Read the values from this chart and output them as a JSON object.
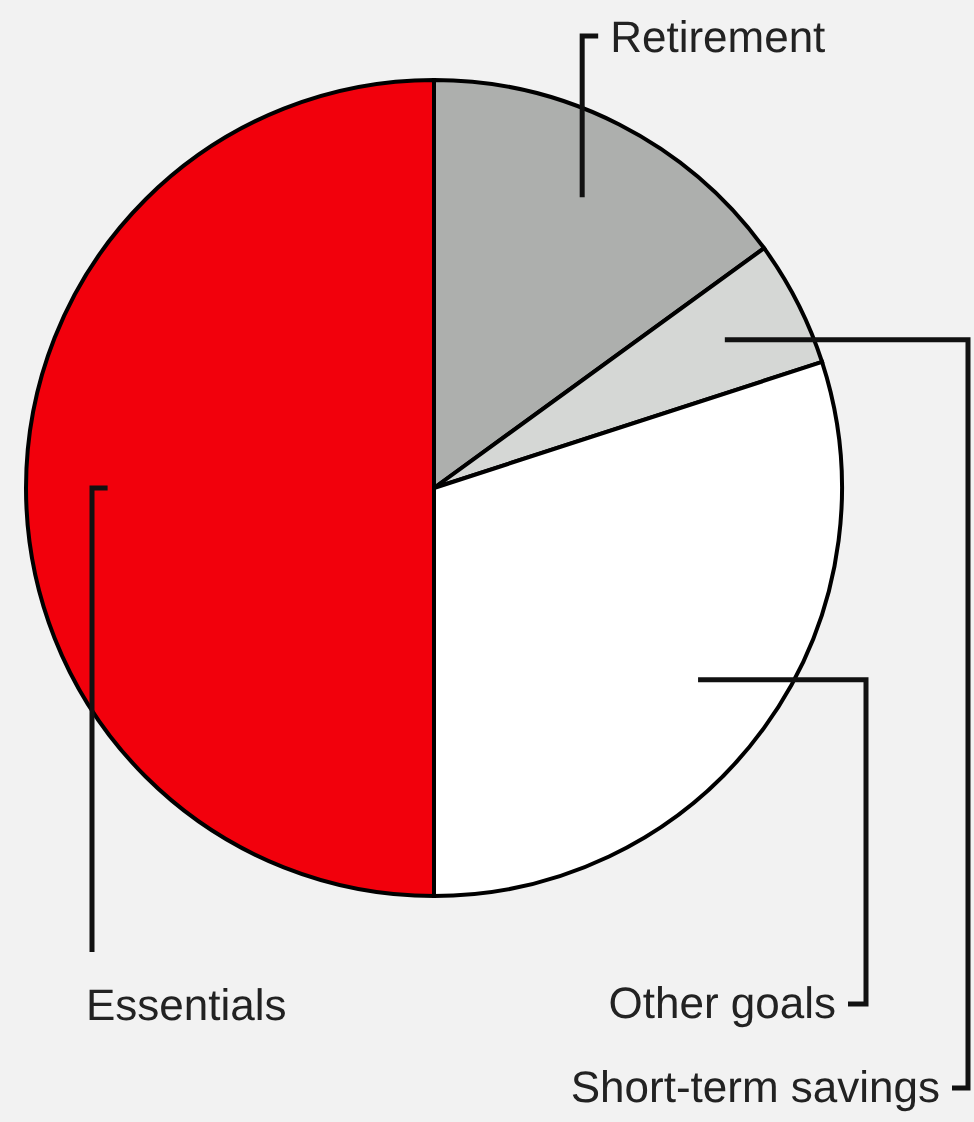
{
  "chart_data": {
    "type": "pie",
    "categories": [
      "Retirement",
      "Short-term savings",
      "Other goals",
      "Essentials"
    ],
    "values": [
      15,
      5,
      30,
      50
    ],
    "colors": [
      "#adafad",
      "#d5d7d5",
      "#ffffff",
      "#f2000c"
    ]
  }
}
